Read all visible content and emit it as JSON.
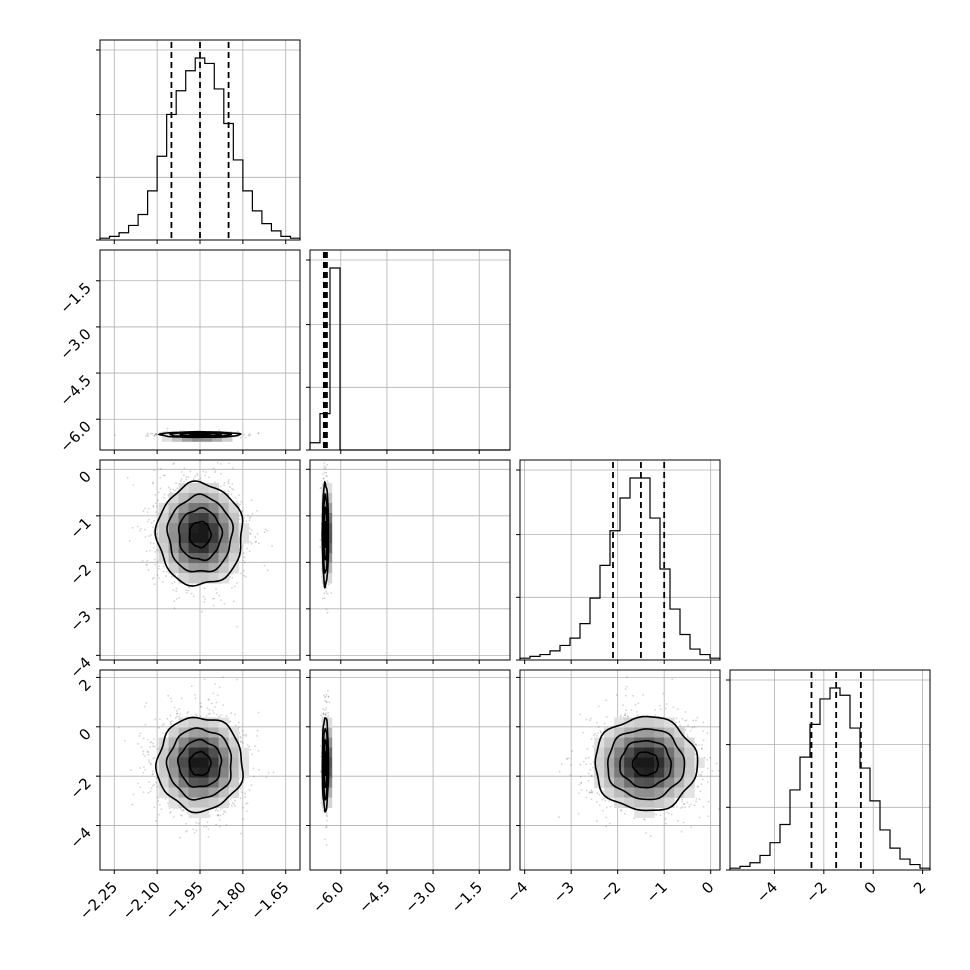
{
  "chart_data": {
    "type": "corner",
    "parameters": [
      {
        "id": "p0",
        "range": [
          -2.3,
          -1.6
        ],
        "ticks": [
          -2.25,
          -2.1,
          -1.95,
          -1.8,
          -1.65
        ],
        "tick_labels": [
          "−2.25",
          "−2.10",
          "−1.95",
          "−1.80",
          "−1.65"
        ],
        "quantiles": [
          -2.05,
          -1.95,
          -1.85
        ],
        "hist": [
          1,
          2,
          4,
          8,
          14,
          27,
          46,
          69,
          82,
          93,
          100,
          97,
          83,
          64,
          44,
          27,
          16,
          9,
          5,
          2,
          1
        ]
      },
      {
        "id": "p1",
        "range": [
          -7.0,
          -0.5
        ],
        "ticks": [
          -6.0,
          -4.5,
          -3.0,
          -1.5
        ],
        "tick_labels": [
          "−6.0",
          "−4.5",
          "−3.0",
          "−1.5"
        ],
        "quantiles": [
          -6.55,
          -6.5,
          -6.45
        ],
        "hist": [
          4,
          20,
          100,
          0,
          0,
          0,
          0,
          0,
          0,
          0,
          0,
          0,
          0,
          0,
          0,
          0,
          0,
          0,
          0,
          0
        ],
        "marginal_ticks": [
          -6.0,
          -4.5,
          -3.0,
          -1.5
        ]
      },
      {
        "id": "p2",
        "range": [
          -4.1,
          0.2
        ],
        "ticks": [
          -4,
          -3,
          -2,
          -1,
          0
        ],
        "tick_labels": [
          "−4",
          "−3",
          "−2",
          "−1",
          "0"
        ],
        "quantiles": [
          -2.1,
          -1.5,
          -1.0
        ],
        "hist": [
          1,
          2,
          3,
          5,
          8,
          12,
          20,
          34,
          52,
          71,
          89,
          100,
          100,
          78,
          50,
          28,
          14,
          6,
          3,
          1
        ]
      },
      {
        "id": "p3",
        "range": [
          -5.8,
          2.3
        ],
        "ticks": [
          -4,
          -2,
          0,
          2
        ],
        "tick_labels": [
          "−4",
          "−2",
          "0",
          "2"
        ],
        "quantiles": [
          -2.5,
          -1.5,
          -0.5
        ],
        "hist": [
          1,
          2,
          4,
          8,
          15,
          25,
          44,
          62,
          80,
          94,
          100,
          96,
          78,
          56,
          38,
          22,
          12,
          6,
          3,
          1
        ]
      }
    ],
    "hist_y_ticks": [
      0.0,
      0.33,
      0.66,
      1.0
    ],
    "pairs": [
      {
        "x": "p0",
        "y": "p1",
        "center": [
          -1.95,
          -6.5
        ],
        "sigma": [
          0.07,
          0.045
        ],
        "scatter_count": 500
      },
      {
        "x": "p0",
        "y": "p2",
        "center": [
          -1.95,
          -1.4
        ],
        "sigma": [
          0.075,
          0.55
        ],
        "scatter_count": 1500
      },
      {
        "x": "p1",
        "y": "p2",
        "center": [
          -6.5,
          -1.4
        ],
        "sigma": [
          0.05,
          0.55
        ],
        "scatter_count": 550
      },
      {
        "x": "p0",
        "y": "p3",
        "center": [
          -1.95,
          -1.5
        ],
        "sigma": [
          0.075,
          0.95
        ],
        "scatter_count": 1500
      },
      {
        "x": "p1",
        "y": "p3",
        "center": [
          -6.5,
          -1.5
        ],
        "sigma": [
          0.05,
          0.95
        ],
        "scatter_count": 550
      },
      {
        "x": "p2",
        "y": "p3",
        "center": [
          -1.4,
          -1.5
        ],
        "sigma": [
          0.55,
          0.95
        ],
        "scatter_count": 1500
      }
    ],
    "contour_levels_sigma": [
      0.5,
      1.0,
      1.5,
      2.0
    ],
    "grid": true,
    "colors": {
      "line": "#000000",
      "scatter": "#555555",
      "grid": "#b0b0b0"
    }
  }
}
